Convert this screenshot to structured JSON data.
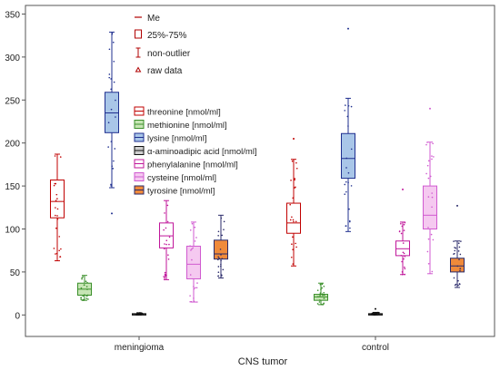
{
  "chart_data": {
    "type": "boxplot",
    "xlabel": "CNS tumor",
    "ylabel": "",
    "ylim": [
      -25,
      360
    ],
    "yticks": [
      0,
      50,
      100,
      150,
      200,
      250,
      300,
      350
    ],
    "grid": false,
    "legend_position": "top-left inside plot",
    "categories": [
      "meningioma",
      "control"
    ],
    "legend_markers": [
      {
        "label": "Me",
        "symbol": "median-line"
      },
      {
        "label": "25%-75%",
        "symbol": "box"
      },
      {
        "label": "non-outlier",
        "symbol": "whisker"
      },
      {
        "label": "raw data",
        "symbol": "triangle"
      }
    ],
    "series": [
      {
        "name": "threonine  [nmol/ml]",
        "color": "#c00000",
        "fill": "#ffffff",
        "boxes": [
          {
            "category": "meningioma",
            "min": 63,
            "q1": 113,
            "median": 132,
            "q3": 157,
            "max": 187
          },
          {
            "category": "control",
            "min": 57,
            "q1": 95,
            "median": 107,
            "q3": 130,
            "max": 181
          }
        ]
      },
      {
        "name": "methionine [nmol/ml]",
        "color": "#3a8f2a",
        "fill": "#c6e5b4",
        "boxes": [
          {
            "category": "meningioma",
            "min": 17,
            "q1": 23,
            "median": 30,
            "q3": 37,
            "max": 46
          },
          {
            "category": "control",
            "min": 12,
            "q1": 17,
            "median": 21,
            "q3": 24,
            "max": 37
          }
        ]
      },
      {
        "name": "lysine [nmol/ml]",
        "color": "#1f2f8f",
        "fill": "#a9c6e8",
        "boxes": [
          {
            "category": "meningioma",
            "min": 148,
            "q1": 212,
            "median": 235,
            "q3": 259,
            "max": 329
          },
          {
            "category": "control",
            "min": 97,
            "q1": 159,
            "median": 182,
            "q3": 211,
            "max": 252
          }
        ]
      },
      {
        "name": "α-aminoadipic acid [nmol/ml]",
        "color": "#111111",
        "fill": "#cfcfcf",
        "boxes": [
          {
            "category": "meningioma",
            "min": 0,
            "q1": 0.5,
            "median": 1,
            "q3": 1.5,
            "max": 2.5
          },
          {
            "category": "control",
            "min": 0,
            "q1": 0.5,
            "median": 1,
            "q3": 1.5,
            "max": 3
          }
        ]
      },
      {
        "name": "phenylalanine [nmol/ml]",
        "color": "#c0169a",
        "fill": "#ffffff",
        "boxes": [
          {
            "category": "meningioma",
            "min": 41,
            "q1": 78,
            "median": 92,
            "q3": 107,
            "max": 133
          },
          {
            "category": "control",
            "min": 47,
            "q1": 69,
            "median": 77,
            "q3": 86,
            "max": 108
          }
        ]
      },
      {
        "name": "cysteine [nmol/ml]",
        "color": "#d05ad0",
        "fill": "#f5c9f0",
        "boxes": [
          {
            "category": "meningioma",
            "min": 15,
            "q1": 42,
            "median": 59,
            "q3": 80,
            "max": 108
          },
          {
            "category": "control",
            "min": 48,
            "q1": 100,
            "median": 116,
            "q3": 150,
            "max": 201
          }
        ]
      },
      {
        "name": "tyrosine [nmol/ml]",
        "color": "#2a2a6a",
        "fill": "#f08a3a",
        "boxes": [
          {
            "category": "meningioma",
            "min": 43,
            "q1": 65,
            "median": 71,
            "q3": 87,
            "max": 116
          },
          {
            "category": "control",
            "min": 32,
            "q1": 50,
            "median": 57,
            "q3": 66,
            "max": 86
          }
        ]
      }
    ],
    "outliers": [
      {
        "series": "lysine [nmol/ml]",
        "category": "meningioma",
        "values": [
          118
        ]
      },
      {
        "series": "lysine [nmol/ml]",
        "category": "control",
        "values": [
          333
        ]
      },
      {
        "series": "threonine  [nmol/ml]",
        "category": "control",
        "values": [
          205
        ]
      },
      {
        "series": "cysteine [nmol/ml]",
        "category": "control",
        "values": [
          240
        ]
      },
      {
        "series": "phenylalanine [nmol/ml]",
        "category": "control",
        "values": [
          146
        ]
      },
      {
        "series": "tyrosine [nmol/ml]",
        "category": "control",
        "values": [
          127
        ]
      },
      {
        "series": "α-aminoadipic acid [nmol/ml]",
        "category": "control",
        "values": [
          7
        ]
      }
    ]
  }
}
